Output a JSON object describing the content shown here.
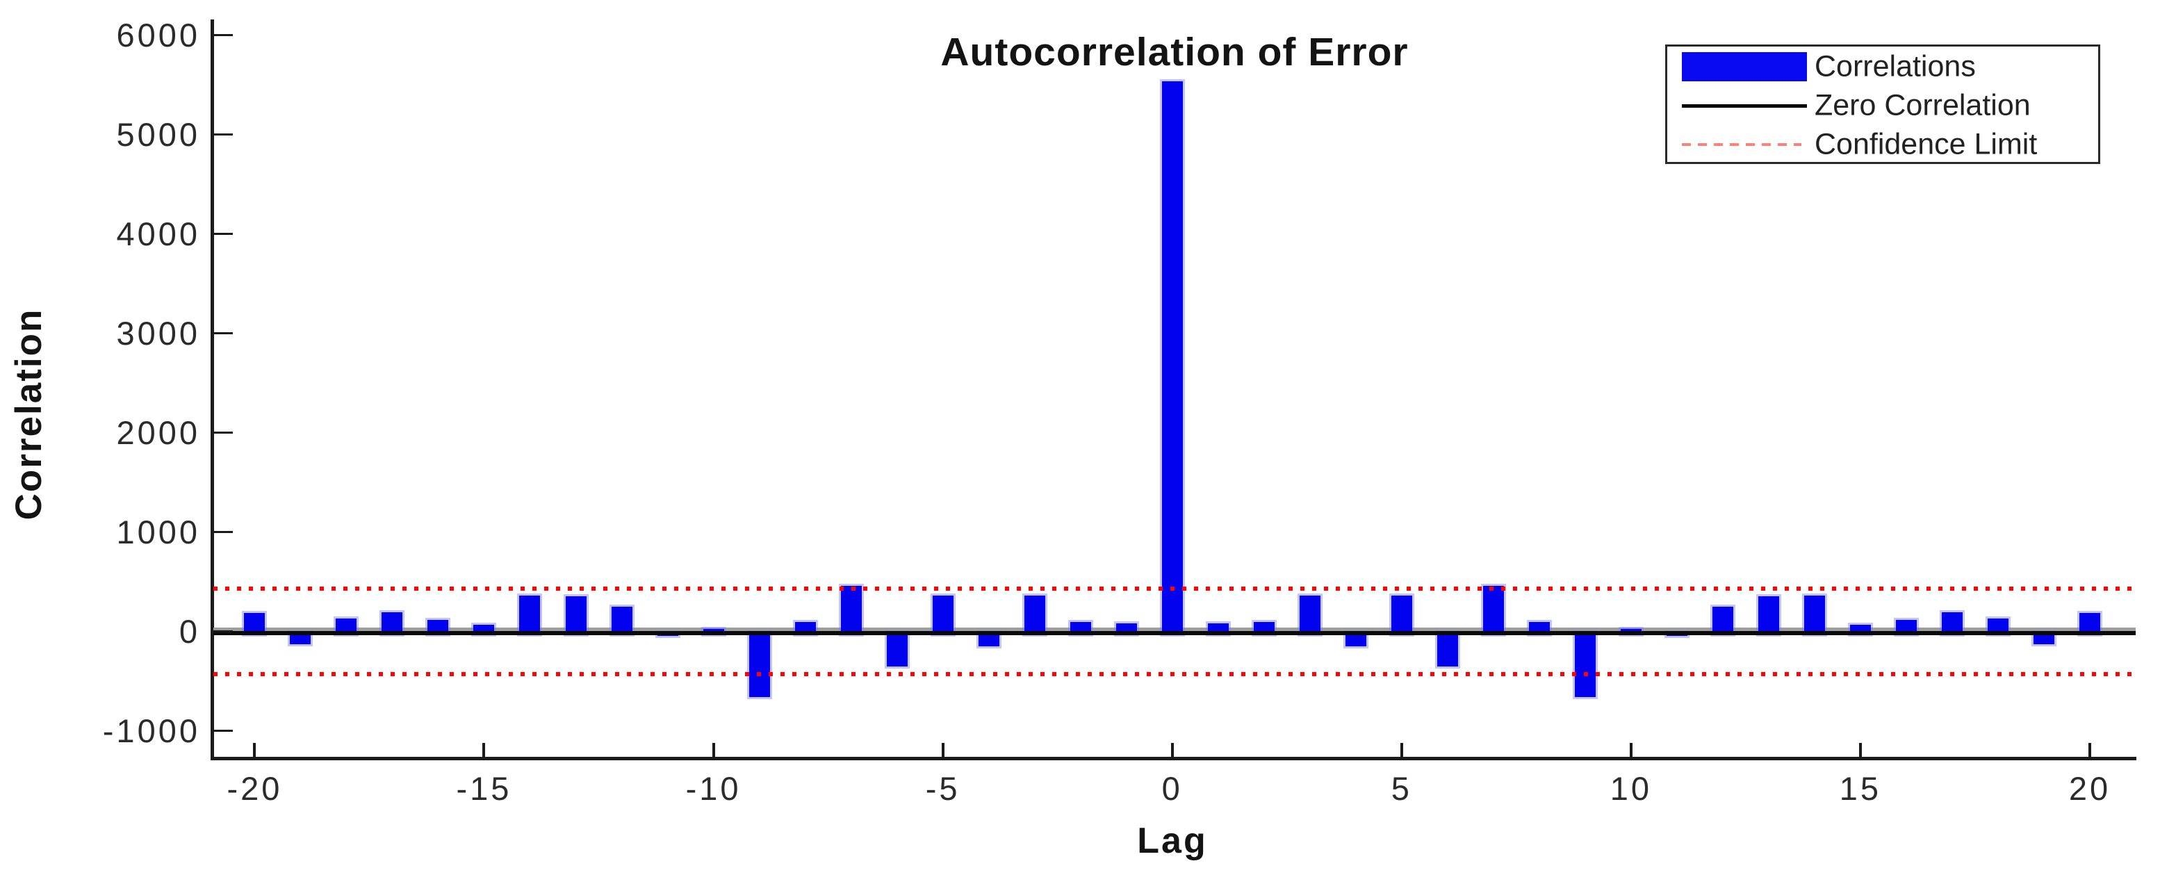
{
  "figure": {
    "title": "Autocorrelation of Error",
    "x_axis_label": "Lag",
    "y_axis_label": "Correlation"
  },
  "legend": {
    "position": "top-right",
    "items": [
      {
        "label": "Correlations",
        "marker": "blue-filled-bar",
        "color": "#0a0af0"
      },
      {
        "label": "Zero Correlation",
        "marker": "black-solid-line",
        "color": "#000000"
      },
      {
        "label": "Confidence Limit",
        "marker": "red-dashed-line",
        "color": "#f8837b"
      }
    ]
  },
  "chart_data": {
    "type": "bar",
    "title": "Autocorrelation of Error",
    "xlabel": "Lag",
    "ylabel": "Correlation",
    "x": [
      -20,
      -19,
      -18,
      -17,
      -16,
      -15,
      -14,
      -13,
      -12,
      -11,
      -10,
      -9,
      -8,
      -7,
      -6,
      -5,
      -4,
      -3,
      -2,
      -1,
      0,
      1,
      2,
      3,
      4,
      5,
      6,
      7,
      8,
      9,
      10,
      11,
      12,
      13,
      14,
      15,
      16,
      17,
      18,
      19,
      20
    ],
    "values": [
      185,
      -130,
      130,
      195,
      120,
      70,
      360,
      355,
      248,
      -40,
      30,
      -660,
      95,
      460,
      -350,
      365,
      -150,
      365,
      100,
      80,
      5535,
      80,
      100,
      365,
      -150,
      365,
      -350,
      460,
      95,
      -660,
      30,
      -40,
      248,
      355,
      360,
      70,
      120,
      195,
      130,
      -130,
      185
    ],
    "zero_line": 0,
    "confidence_limits": [
      430,
      -430
    ],
    "x_ticks": [
      -20,
      -15,
      -10,
      -5,
      0,
      5,
      10,
      15,
      20
    ],
    "y_ticks": [
      6000,
      5000,
      4000,
      3000,
      2000,
      1000,
      0,
      -1000
    ],
    "xlim": [
      -20.9,
      21.0
    ],
    "ylim": [
      -1260,
      6160
    ],
    "grid": false,
    "legend_entries": [
      "Correlations",
      "Zero Correlation",
      "Confidence Limit"
    ],
    "legend_position": "top-right",
    "colors": {
      "bars": "#0202ee",
      "zero_line": "#000000",
      "confidence_limit": "#ff0000"
    }
  }
}
